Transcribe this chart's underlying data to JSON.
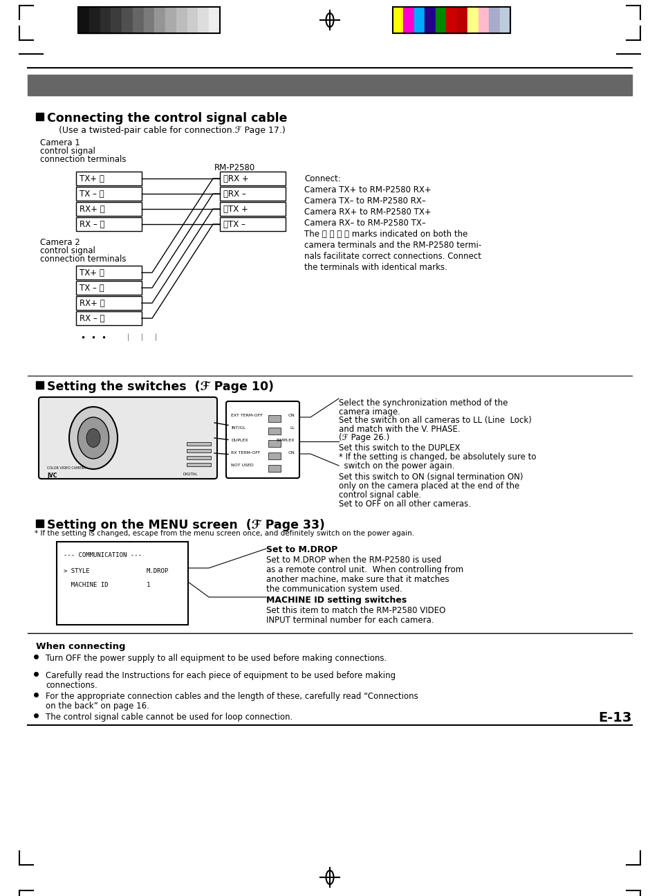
{
  "page_bg": "#ffffff",
  "page_number": "E-13",
  "section1_title": "Connecting the control signal cable",
  "section1_subtitle": "(Use a twisted-pair cable for connection.ℱ Page 17.)",
  "section2_title": "Setting the switches  (ℱ Page 10)",
  "section3_title": "Setting on the MENU screen  (ℱ Page 33)",
  "connect_text": [
    "Connect:",
    "Camera TX+ to RM-P2580 RX+",
    "Camera TX– to RM-P2580 RX–",
    "Camera RX+ to RM-P2580 TX+",
    "Camera RX– to RM-P2580 TX–",
    "The Ⓐ Ⓑ Ⓒ Ⓓ marks indicated on both the",
    "camera terminals and the RM-P2580 termi-",
    "nals facilitate correct connections. Connect",
    "the terminals with identical marks."
  ],
  "cam1_labels": [
    "TX+ Ⓐ",
    "TX – Ⓑ",
    "RX+ Ⓒ",
    "RX – Ⓓ"
  ],
  "rmp_labels": [
    "ⒶRX +",
    "ⒷRX –",
    "ⒸTX +",
    "ⒹTX –"
  ],
  "cam2_labels": [
    "TX+ Ⓐ",
    "TX – Ⓑ",
    "RX+ Ⓒ",
    "RX – Ⓓ"
  ],
  "gray_shades": [
    "#111111",
    "#1e1e1e",
    "#2d2d2d",
    "#3c3c3c",
    "#4f4f4f",
    "#656565",
    "#7a7a7a",
    "#959595",
    "#aaaaaa",
    "#bcbcbc",
    "#cccccc",
    "#dddddd",
    "#eeeeee"
  ],
  "color_swatches": [
    "#ffff00",
    "#ff00cc",
    "#00aaff",
    "#220088",
    "#008800",
    "#cc0000",
    "#bb0000",
    "#ffff88",
    "#ffbbcc",
    "#aaaacc",
    "#bbccdd"
  ],
  "menu_subtitle": "* If the setting is changed, escape from the menu screen once, and definitely switch on the power again.",
  "menu_set_mdrop_title": "Set to M.DROP",
  "menu_set_mdrop_text": [
    "Set to M.DROP when the RM-P2580 is used",
    "as a remote control unit.  When controlling from",
    "another machine, make sure that it matches",
    "the communication system used."
  ],
  "menu_machine_title": "MACHINE ID setting switches",
  "menu_machine_text": [
    "Set this item to match the RM-P2580 VIDEO",
    "INPUT terminal number for each camera."
  ],
  "when_connecting_title": "When connecting",
  "bullet_texts": [
    "Turn OFF the power supply to all equipment to be used before making connections.",
    "Carefully read the Instructions for each piece of equipment to be used before making\nconnections.",
    "For the appropriate connection cables and the length of these, carefully read “Connections\non the back” on page 16.",
    "The control signal cable cannot be used for loop connection."
  ]
}
